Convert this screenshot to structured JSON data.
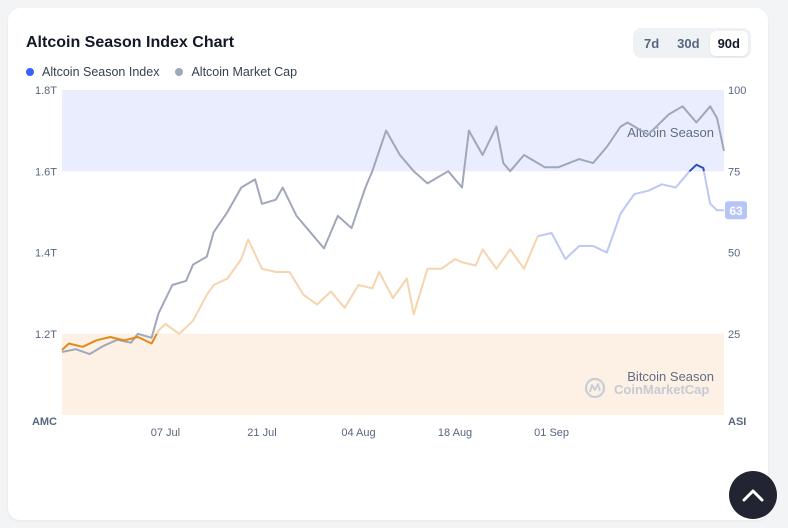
{
  "header": {
    "title": "Altcoin Season Index Chart",
    "tabs": [
      {
        "label": "7d",
        "active": false
      },
      {
        "label": "30d",
        "active": false
      },
      {
        "label": "90d",
        "active": true
      }
    ]
  },
  "legend": [
    {
      "label": "Altcoin Season Index",
      "color": "#3861fb"
    },
    {
      "label": "Altcoin Market Cap",
      "color": "#a1a7bb"
    }
  ],
  "watermark": "CoinMarketCap",
  "chart_data": {
    "type": "line",
    "left_axis": {
      "label": "AMC",
      "ticks": [
        "1.8T",
        "1.6T",
        "1.4T",
        "1.2T"
      ],
      "range": [
        1.0,
        1.8
      ]
    },
    "right_axis": {
      "label": "ASI",
      "ticks": [
        "100",
        "75",
        "50",
        "25"
      ],
      "range": [
        0,
        100
      ]
    },
    "x_ticks": [
      "07 Jul",
      "21 Jul",
      "04 Aug",
      "18 Aug",
      "01 Sep"
    ],
    "x_range": [
      -14,
      82
    ],
    "x_tick_positions": [
      1,
      15,
      29,
      43,
      57
    ],
    "zones": [
      {
        "label": "Altcoin Season",
        "from": 75,
        "to": 100,
        "color": "#e9edfd"
      },
      {
        "label": "Bitcoin Season",
        "from": 0,
        "to": 25,
        "color": "#fdf1e6"
      }
    ],
    "current_value_label": "63",
    "series": [
      {
        "name": "Altcoin Market Cap",
        "axis": "left",
        "color": "#a1a7bb",
        "x": [
          -14,
          -12,
          -10,
          -8,
          -6,
          -4,
          -3,
          -1,
          0,
          2,
          4,
          5,
          7,
          8,
          10,
          12,
          14,
          15,
          17,
          18,
          20,
          22,
          24,
          26,
          28,
          30,
          31,
          33,
          35,
          37,
          39,
          42,
          44,
          45,
          47,
          49,
          50,
          51,
          53,
          55,
          56,
          58,
          61,
          63,
          65,
          67,
          68,
          71,
          74,
          76,
          78,
          80,
          81,
          82
        ],
        "values": [
          1.155,
          1.162,
          1.15,
          1.17,
          1.185,
          1.178,
          1.2,
          1.19,
          1.25,
          1.32,
          1.33,
          1.37,
          1.39,
          1.45,
          1.5,
          1.56,
          1.58,
          1.52,
          1.53,
          1.56,
          1.49,
          1.45,
          1.41,
          1.49,
          1.46,
          1.56,
          1.6,
          1.7,
          1.64,
          1.6,
          1.57,
          1.6,
          1.56,
          1.7,
          1.64,
          1.71,
          1.62,
          1.6,
          1.64,
          1.62,
          1.61,
          1.61,
          1.63,
          1.62,
          1.66,
          1.71,
          1.72,
          1.69,
          1.74,
          1.76,
          1.72,
          1.76,
          1.73,
          1.65
        ]
      },
      {
        "name": "Altcoin Season Index",
        "axis": "right",
        "color": "#3861fb",
        "x": [
          -14,
          -13,
          -11,
          -9,
          -7,
          -5,
          -3,
          -1,
          0,
          1,
          3,
          5,
          7,
          8,
          10,
          12,
          13,
          15,
          17,
          19,
          21,
          23,
          25,
          27,
          29,
          31,
          32,
          34,
          36,
          37,
          39,
          41,
          43,
          44,
          46,
          47,
          49,
          51,
          53,
          55,
          57,
          59,
          61,
          63,
          65,
          67,
          69,
          71,
          73,
          75,
          77,
          78,
          79,
          80,
          81,
          82
        ],
        "values": [
          20,
          22,
          21,
          23,
          24,
          23,
          24,
          22,
          26,
          28,
          25,
          29,
          37,
          40,
          42,
          48,
          54,
          45,
          44,
          44,
          37,
          34,
          38,
          33,
          40,
          39,
          44,
          36,
          42,
          31,
          45,
          45,
          48,
          47,
          46,
          51,
          45,
          51,
          45,
          55,
          56,
          48,
          52,
          52,
          50,
          62,
          68,
          69,
          71,
          70,
          75,
          77,
          76,
          65,
          63,
          63
        ]
      }
    ]
  }
}
